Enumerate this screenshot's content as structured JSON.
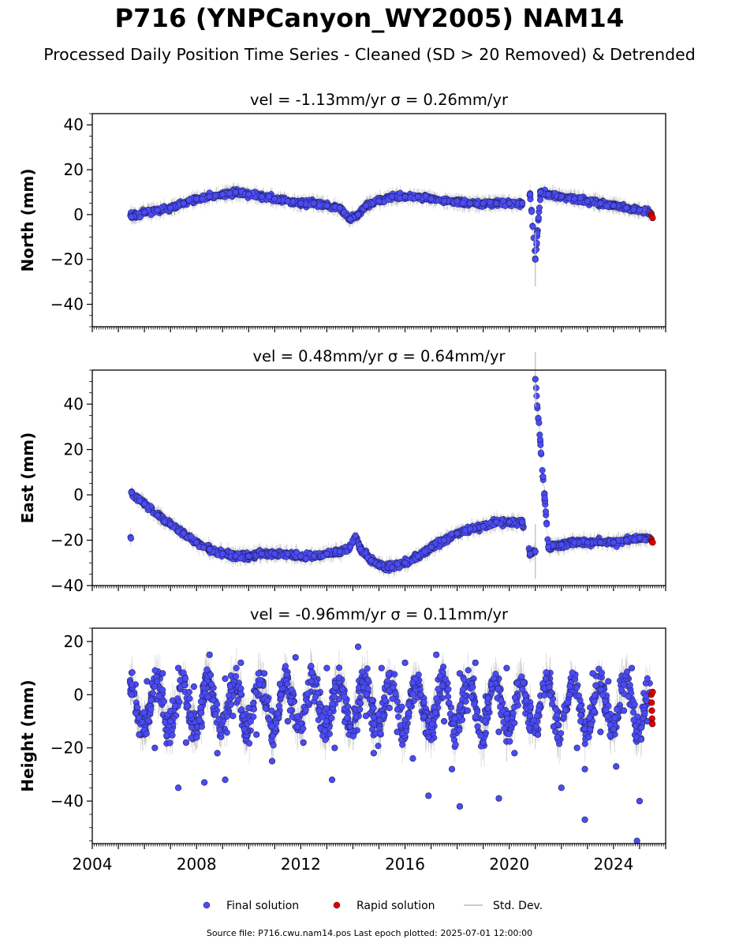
{
  "figure": {
    "title": "P716 (YNPCanyon_WY2005) NAM14",
    "subtitle": "Processed Daily Position Time Series - Cleaned (SD > 20 Removed) & Detrended",
    "source_note": "Source file: P716.cwu.nam14.pos  Last epoch plotted: 2025-07-01 12:00:00"
  },
  "chart_data": [
    {
      "type": "scatter",
      "panel": "north",
      "title": "vel = -1.13mm/yr   σ = 0.26mm/yr",
      "ylabel": "North (mm)",
      "xlabel": "",
      "xlim": [
        2004,
        2026
      ],
      "ylim": [
        -50,
        45
      ],
      "yticks": [
        -40,
        -20,
        0,
        20,
        40
      ],
      "series": [
        {
          "name": "Final solution",
          "color": "#4b4bf5",
          "x": [
            2005.5,
            2006.0,
            2006.5,
            2007.0,
            2007.5,
            2008.0,
            2008.5,
            2009.0,
            2009.5,
            2010.0,
            2010.5,
            2011.0,
            2011.5,
            2012.0,
            2012.5,
            2013.0,
            2013.5,
            2013.9,
            2014.2,
            2014.5,
            2015.0,
            2015.5,
            2016.0,
            2016.5,
            2017.0,
            2017.5,
            2018.0,
            2018.5,
            2019.0,
            2019.5,
            2020.0,
            2020.5,
            2020.8,
            2021.2,
            2021.5,
            2022.0,
            2022.5,
            2023.0,
            2023.5,
            2024.0,
            2024.5,
            2025.0,
            2025.4,
            2021.0
          ],
          "y": [
            -1,
            1,
            2,
            3,
            5,
            7,
            8,
            9,
            10,
            9,
            8,
            7,
            6,
            5,
            5,
            4,
            3,
            -2,
            0,
            4,
            6,
            8,
            8,
            8,
            7,
            6,
            6,
            5,
            5,
            5,
            5,
            5,
            9,
            10,
            9,
            8,
            7,
            6,
            5,
            4,
            3,
            2,
            1,
            -20
          ]
        },
        {
          "name": "Rapid solution",
          "color": "#e00000",
          "x": [
            2025.45,
            2025.47,
            2025.5
          ],
          "y": [
            0.5,
            -0.5,
            -1.5
          ]
        }
      ],
      "errorbar_label": "Std. Dev."
    },
    {
      "type": "scatter",
      "panel": "east",
      "title": "vel = 0.48mm/yr   σ = 0.64mm/yr",
      "ylabel": "East (mm)",
      "xlabel": "",
      "xlim": [
        2004,
        2026
      ],
      "ylim": [
        -40,
        55
      ],
      "yticks": [
        -40,
        -20,
        0,
        20,
        40
      ],
      "series": [
        {
          "name": "Final solution",
          "color": "#4b4bf5",
          "x": [
            2005.5,
            2006.0,
            2006.5,
            2007.0,
            2007.5,
            2008.0,
            2008.5,
            2009.0,
            2009.5,
            2010.0,
            2010.5,
            2011.0,
            2011.5,
            2012.0,
            2012.5,
            2013.0,
            2013.5,
            2013.9,
            2014.1,
            2014.3,
            2014.7,
            2015.0,
            2015.5,
            2016.0,
            2016.5,
            2017.0,
            2017.5,
            2018.0,
            2018.5,
            2019.0,
            2019.5,
            2020.0,
            2020.5,
            2020.8,
            2021.0,
            2021.5,
            2022.0,
            2022.5,
            2023.0,
            2023.5,
            2024.0,
            2024.5,
            2025.0,
            2025.4,
            2021.0
          ],
          "y": [
            1,
            -4,
            -9,
            -13,
            -17,
            -21,
            -24,
            -26,
            -27,
            -27,
            -26,
            -26,
            -26,
            -27,
            -27,
            -26,
            -25,
            -23,
            -18,
            -24,
            -29,
            -31,
            -32,
            -30,
            -27,
            -23,
            -20,
            -17,
            -15,
            -14,
            -12,
            -12,
            -12,
            -26,
            -25,
            -23,
            -22,
            -21,
            -21,
            -21,
            -21,
            -20,
            -19,
            -19,
            51
          ]
        },
        {
          "name": "Rapid solution",
          "color": "#e00000",
          "x": [
            2025.45,
            2025.47,
            2025.5
          ],
          "y": [
            -19.5,
            -20.5,
            -21
          ]
        }
      ],
      "errorbar_label": "Std. Dev."
    },
    {
      "type": "scatter",
      "panel": "height",
      "title": "vel = -0.96mm/yr   σ = 0.11mm/yr",
      "ylabel": "Height (mm)",
      "xlabel": "",
      "xlim": [
        2004,
        2026
      ],
      "ylim": [
        -56,
        25
      ],
      "yticks": [
        -40,
        -20,
        0,
        20
      ],
      "xticks": [
        2004,
        2008,
        2012,
        2016,
        2020,
        2024
      ],
      "series": [
        {
          "name": "Final solution",
          "color": "#4b4bf5",
          "x": [
            2005.5,
            2005.8,
            2006.1,
            2006.4,
            2006.7,
            2007.0,
            2007.3,
            2007.6,
            2007.9,
            2008.2,
            2008.5,
            2008.8,
            2009.1,
            2009.4,
            2009.7,
            2010.0,
            2010.3,
            2010.6,
            2010.9,
            2011.2,
            2011.5,
            2011.8,
            2012.1,
            2012.4,
            2012.7,
            2013.0,
            2013.3,
            2013.6,
            2013.9,
            2014.2,
            2014.5,
            2014.8,
            2015.1,
            2015.4,
            2015.7,
            2016.0,
            2016.3,
            2016.6,
            2016.9,
            2017.2,
            2017.5,
            2017.8,
            2018.1,
            2018.4,
            2018.7,
            2019.0,
            2019.3,
            2019.6,
            2019.9,
            2020.2,
            2020.5,
            2020.8,
            2021.1,
            2021.4,
            2021.7,
            2022.0,
            2022.3,
            2022.6,
            2022.9,
            2023.2,
            2023.5,
            2023.8,
            2024.1,
            2024.4,
            2024.7,
            2025.0,
            2025.3,
            2007.3,
            2008.3,
            2009.1,
            2013.2,
            2016.9,
            2018.1,
            2019.6,
            2022.9,
            2024.9
          ],
          "y": [
            0,
            -15,
            5,
            -20,
            8,
            -10,
            10,
            -18,
            3,
            -12,
            15,
            -22,
            6,
            -8,
            12,
            -5,
            -15,
            8,
            -25,
            4,
            -10,
            14,
            -18,
            5,
            -6,
            10,
            -20,
            2,
            -12,
            18,
            -8,
            -22,
            10,
            -5,
            -14,
            12,
            -24,
            0,
            -16,
            15,
            -10,
            -28,
            8,
            -6,
            12,
            -18,
            4,
            -14,
            10,
            -22,
            2,
            -8,
            -15,
            6,
            -12,
            -35,
            0,
            -20,
            -28,
            8,
            -14,
            5,
            -27,
            -6,
            10,
            -40,
            -10,
            -35,
            -33,
            -32,
            -32,
            -38,
            -42,
            -39,
            -47,
            -55
          ]
        },
        {
          "name": "Rapid solution",
          "color": "#e00000",
          "x": [
            2025.45,
            2025.46,
            2025.47,
            2025.48,
            2025.49,
            2025.5
          ],
          "y": [
            0,
            -3,
            -6,
            -9,
            -11,
            1
          ]
        }
      ],
      "errorbar_label": "Std. Dev."
    }
  ],
  "legend": {
    "position": "bottom-center",
    "items": [
      {
        "label": "Final solution",
        "kind": "dot",
        "color": "#4b4bf5"
      },
      {
        "label": "Rapid solution",
        "kind": "dot",
        "color": "#e00000"
      },
      {
        "label": "Std. Dev.",
        "kind": "line",
        "color": "#bbbbbb"
      }
    ]
  }
}
